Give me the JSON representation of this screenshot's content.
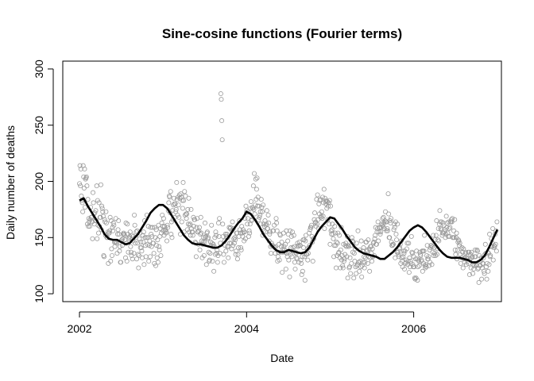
{
  "chart_data": {
    "type": "scatter",
    "title": "Sine-cosine functions (Fourier terms)",
    "xlabel": "Date",
    "ylabel": "Daily number of deaths",
    "xlim": [
      2001.8,
      2007.05
    ],
    "ylim": [
      93,
      307
    ],
    "xticks": [
      2002,
      2004,
      2006
    ],
    "yticks": [
      100,
      150,
      200,
      250,
      300
    ],
    "grid": false,
    "colors": {
      "points": "#9a9a9a",
      "fit": "#000000"
    },
    "series": [
      {
        "type": "scatter",
        "x_range": [
          2002.0,
          2006.997
        ],
        "values": [
          198,
          214,
          196,
          211,
          187,
          183,
          181,
          173,
          214,
          204,
          194,
          211,
          177,
          202,
          203,
          204,
          196,
          162,
          184,
          160,
          167,
          164,
          160,
          166,
          177,
          168,
          168,
          164,
          149,
          190,
          181,
          171,
          162,
          172,
          165,
          174,
          165,
          196,
          149,
          183,
          161,
          154,
          181,
          160,
          168,
          168,
          197,
          157,
          178,
          176,
          173,
          169,
          134,
          133,
          166,
          164,
          152,
          173,
          163,
          150,
          150,
          155,
          127,
          154,
          154,
          156,
          168,
          129,
          165,
          140,
          134,
          159,
          156,
          163,
          161,
          146,
          142,
          146,
          167,
          146,
          145,
          136,
          153,
          157,
          165,
          153,
          138,
          142,
          128,
          128,
          147,
          148,
          143,
          149,
          153,
          154,
          153,
          152,
          148,
          132,
          163,
          145,
          129,
          162,
          153,
          137,
          149,
          150,
          151,
          155,
          142,
          137,
          134,
          152,
          131,
          147,
          151,
          136,
          170,
          161,
          145,
          150,
          155,
          131,
          156,
          145,
          135,
          123,
          134,
          149,
          154,
          141,
          146,
          141,
          138,
          132,
          152,
          146,
          155,
          126,
          165,
          150,
          143,
          133,
          150,
          170,
          144,
          150,
          160,
          129,
          143,
          147,
          133,
          159,
          153,
          142,
          151,
          159,
          145,
          145,
          136,
          127,
          159,
          150,
          125,
          157,
          143,
          132,
          148,
          128,
          161,
          142,
          139,
          151,
          158,
          134,
          154,
          163,
          170,
          160,
          156,
          167,
          152,
          160,
          156,
          157,
          154,
          155,
          147,
          161,
          159,
          174,
          181,
          187,
          186,
          172,
          191,
          153,
          164,
          150,
          174,
          166,
          179,
          185,
          180,
          168,
          180,
          173,
          175,
          199,
          184,
          170,
          186,
          179,
          168,
          188,
          185,
          153,
          189,
          186,
          164,
          183,
          176,
          199,
          183,
          155,
          191,
          170,
          187,
          171,
          167,
          171,
          157,
          175,
          162,
          185,
          155,
          161,
          162,
          152,
          175,
          158,
          155,
          155,
          152,
          168,
          160,
          166,
          166,
          146,
          145,
          133,
          159,
          167,
          155,
          155,
          144,
          156,
          159,
          139,
          153,
          168,
          154,
          147,
          132,
          144,
          146,
          150,
          134,
          146,
          163,
          150,
          151,
          126,
          154,
          155,
          149,
          150,
          137,
          129,
          130,
          136,
          146,
          143,
          161,
          145,
          129,
          142,
          144,
          120,
          142,
          150,
          135,
          155,
          152,
          136,
          139,
          128,
          134,
          163,
          151,
          167,
          136,
          145,
          278,
          273,
          254,
          237,
          162,
          151,
          135,
          128,
          147,
          143,
          153,
          138,
          151,
          153,
          142,
          150,
          132,
          142,
          159,
          145,
          158,
          159,
          145,
          140,
          156,
          164,
          143,
          158,
          149,
          145,
          150,
          148,
          135,
          138,
          154,
          154,
          131,
          135,
          141,
          151,
          165,
          157,
          154,
          141,
          139,
          160,
          154,
          151,
          157,
          155,
          147,
          155,
          167,
          149,
          178,
          172,
          174,
          162,
          167,
          173,
          151,
          156,
          154,
          162,
          176,
          182,
          165,
          166,
          177,
          176,
          196,
          175,
          207,
          171,
          179,
          202,
          184,
          193,
          203,
          178,
          186,
          166,
          178,
          168,
          170,
          173,
          162,
          184,
          177,
          173,
          152,
          179,
          162,
          156,
          160,
          165,
          155,
          161,
          162,
          174,
          158,
          158,
          170,
          163,
          147,
          153,
          155,
          142,
          136,
          145,
          143,
          143,
          156,
          156,
          142,
          161,
          141,
          136,
          142,
          167,
          163,
          156,
          129,
          133,
          137,
          144,
          130,
          153,
          152,
          137,
          142,
          146,
          119,
          137,
          140,
          154,
          142,
          139,
          137,
          144,
          122,
          156,
          136,
          133,
          147,
          153,
          130,
          137,
          115,
          156,
          135,
          141,
          151,
          133,
          155,
          141,
          138,
          152,
          142,
          128,
          122,
          137,
          136,
          132,
          131,
          145,
          142,
          143,
          128,
          146,
          143,
          143,
          130,
          127,
          117,
          133,
          120,
          148,
          141,
          148,
          133,
          112,
          147,
          152,
          135,
          135,
          140,
          130,
          136,
          141,
          154,
          143,
          157,
          159,
          159,
          161,
          151,
          146,
          129,
          149,
          149,
          166,
          172,
          163,
          164,
          160,
          184,
          162,
          188,
          166,
          158,
          180,
          171,
          183,
          184,
          168,
          169,
          173,
          167,
          186,
          169,
          181,
          193,
          158,
          185,
          182,
          180,
          183,
          176,
          182,
          166,
          178,
          181,
          162,
          183,
          144,
          178,
          156,
          153,
          157,
          162,
          153,
          149,
          133,
          143,
          160,
          154,
          143,
          123,
          146,
          134,
          145,
          154,
          136,
          137,
          152,
          132,
          123,
          139,
          159,
          130,
          134,
          125,
          123,
          144,
          129,
          131,
          135,
          143,
          145,
          142,
          133,
          151,
          114,
          143,
          142,
          123,
          124,
          132,
          118,
          143,
          127,
          150,
          147,
          137,
          146,
          114,
          136,
          129,
          140,
          124,
          118,
          145,
          125,
          126,
          156,
          128,
          128,
          120,
          139,
          129,
          124,
          147,
          115,
          125,
          138,
          128,
          141,
          133,
          123,
          128,
          132,
          146,
          146,
          139,
          138,
          127,
          148,
          133,
          140,
          120,
          132,
          142,
          142,
          136,
          129,
          140,
          133,
          145,
          146,
          134,
          149,
          152,
          159,
          144,
          144,
          155,
          158,
          164,
          147,
          155,
          159,
          159,
          153,
          155,
          159,
          162,
          161,
          167,
          160,
          168,
          163,
          158,
          165,
          173,
          164,
          156,
          164,
          158,
          156,
          189,
          171,
          150,
          150,
          165,
          163,
          167,
          146,
          143,
          143,
          144,
          144,
          157,
          162,
          159,
          132,
          164,
          153,
          148,
          137,
          162,
          137,
          135,
          133,
          140,
          141,
          144,
          127,
          147,
          132,
          129,
          124,
          133,
          138,
          136,
          122,
          138,
          127,
          128,
          130,
          140,
          145,
          126,
          129,
          145,
          119,
          132,
          124,
          129,
          127,
          151,
          137,
          136,
          126,
          124,
          133,
          124,
          114,
          113,
          131,
          114,
          138,
          131,
          112,
          124,
          130,
          129,
          125,
          137,
          135,
          134,
          129,
          130,
          138,
          120,
          138,
          127,
          138,
          152,
          125,
          123,
          126,
          124,
          134,
          143,
          131,
          131,
          133,
          125,
          139,
          128,
          141,
          143,
          143,
          126,
          142,
          137,
          152,
          134,
          141,
          136,
          148,
          134,
          152,
          165,
          135,
          140,
          148,
          158,
          147,
          162,
          174,
          164,
          158,
          157,
          164,
          152,
          154,
          163,
          154,
          161,
          155,
          157,
          150,
          153,
          169,
          159,
          163,
          154,
          151,
          164,
          158,
          151,
          159,
          164,
          164,
          166,
          164,
          167,
          150,
          150,
          156,
          150,
          166,
          139,
          135,
          150,
          154,
          131,
          139,
          146,
          148,
          147,
          143,
          145,
          135,
          127,
          140,
          132,
          141,
          137,
          123,
          140,
          131,
          128,
          132,
          136,
          137,
          126,
          132,
          131,
          129,
          137,
          127,
          137,
          117,
          131,
          135,
          123,
          137,
          132,
          133,
          118,
          126,
          122,
          125,
          133,
          139,
          133,
          125,
          126,
          139,
          138,
          122,
          123,
          110,
          134,
          125,
          125,
          129,
          132,
          113,
          123,
          127,
          127,
          132,
          120,
          118,
          135,
          144,
          136,
          124,
          113,
          127,
          137,
          120,
          136,
          126,
          153,
          133,
          134,
          142,
          149,
          142,
          145,
          158,
          130,
          141,
          143,
          142,
          153,
          144,
          156,
          138,
          164
        ],
        "point_note": "one point per 2 days"
      },
      {
        "type": "line",
        "x": [
          2002.0,
          2002.05,
          2002.1,
          2002.15,
          2002.2,
          2002.25,
          2002.3,
          2002.35,
          2002.4,
          2002.45,
          2002.5,
          2002.55,
          2002.6,
          2002.65,
          2002.7,
          2002.75,
          2002.8,
          2002.85,
          2002.9,
          2002.95,
          2003.0,
          2003.05,
          2003.1,
          2003.15,
          2003.2,
          2003.25,
          2003.3,
          2003.35,
          2003.4,
          2003.45,
          2003.5,
          2003.55,
          2003.6,
          2003.65,
          2003.7,
          2003.75,
          2003.8,
          2003.85,
          2003.9,
          2003.95,
          2004.0,
          2004.05,
          2004.1,
          2004.15,
          2004.2,
          2004.25,
          2004.3,
          2004.35,
          2004.4,
          2004.45,
          2004.5,
          2004.55,
          2004.6,
          2004.65,
          2004.7,
          2004.75,
          2004.8,
          2004.85,
          2004.9,
          2004.95,
          2005.0,
          2005.05,
          2005.1,
          2005.15,
          2005.2,
          2005.25,
          2005.3,
          2005.35,
          2005.4,
          2005.45,
          2005.5,
          2005.55,
          2005.6,
          2005.65,
          2005.7,
          2005.75,
          2005.8,
          2005.85,
          2005.9,
          2005.95,
          2006.0,
          2006.05,
          2006.1,
          2006.15,
          2006.2,
          2006.25,
          2006.3,
          2006.35,
          2006.4,
          2006.45,
          2006.5,
          2006.55,
          2006.6,
          2006.65,
          2006.7,
          2006.75,
          2006.8,
          2006.85,
          2006.9,
          2006.95,
          2007.0
        ],
        "values": [
          183,
          185,
          178,
          172,
          166,
          160,
          153,
          149,
          148,
          148,
          146,
          144,
          145,
          149,
          153,
          159,
          165,
          172,
          176,
          179,
          179,
          176,
          170,
          164,
          158,
          152,
          148,
          145,
          144,
          144,
          143,
          142,
          141,
          141,
          143,
          147,
          152,
          158,
          163,
          167,
          173,
          171,
          166,
          160,
          153,
          148,
          143,
          139,
          137,
          137,
          139,
          138,
          137,
          136,
          137,
          141,
          148,
          155,
          160,
          164,
          168,
          167,
          162,
          157,
          151,
          146,
          141,
          138,
          136,
          135,
          134,
          133,
          131,
          131,
          134,
          137,
          141,
          146,
          151,
          156,
          159,
          161,
          159,
          155,
          150,
          145,
          140,
          136,
          133,
          132,
          132,
          132,
          131,
          130,
          128,
          128,
          130,
          134,
          141,
          149,
          157
        ]
      }
    ]
  }
}
